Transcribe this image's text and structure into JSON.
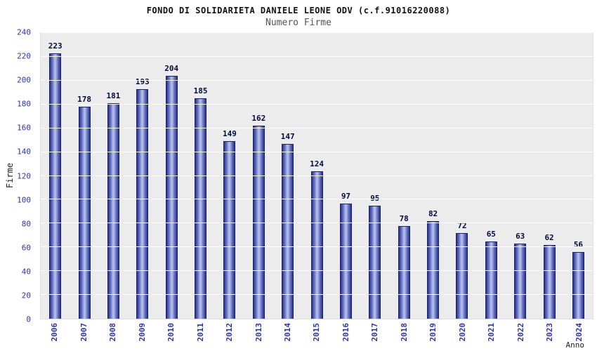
{
  "header": {
    "title": "FONDO DI SOLIDARIETA DANIELE LEONE ODV (c.f.91016220088)",
    "subtitle": "Numero Firme"
  },
  "chart_data": {
    "type": "bar",
    "title": "FONDO DI SOLIDARIETA DANIELE LEONE ODV (c.f.91016220088)",
    "subtitle": "Numero Firme",
    "xlabel": "Anno",
    "ylabel": "Firme",
    "categories": [
      "2006",
      "2007",
      "2008",
      "2009",
      "2010",
      "2011",
      "2012",
      "2013",
      "2014",
      "2015",
      "2016",
      "2017",
      "2018",
      "2019",
      "2020",
      "2021",
      "2022",
      "2023",
      "2024"
    ],
    "values": [
      223,
      178,
      181,
      193,
      204,
      185,
      149,
      162,
      147,
      124,
      97,
      95,
      78,
      82,
      72,
      65,
      63,
      62,
      56
    ],
    "ylim": [
      0,
      240
    ],
    "ytick_step": 20,
    "grid": true,
    "legend": "none",
    "colors": {
      "bar_edge": "#27328c",
      "bar_center": "#bcc5f0",
      "bar_border": "#1a2170",
      "axis_tick_label": "#2b35af",
      "value_label": "#020a3a",
      "plot_background": "#ececec",
      "gridline": "#ffffff",
      "title": "#111111",
      "subtitle": "#555555"
    }
  }
}
